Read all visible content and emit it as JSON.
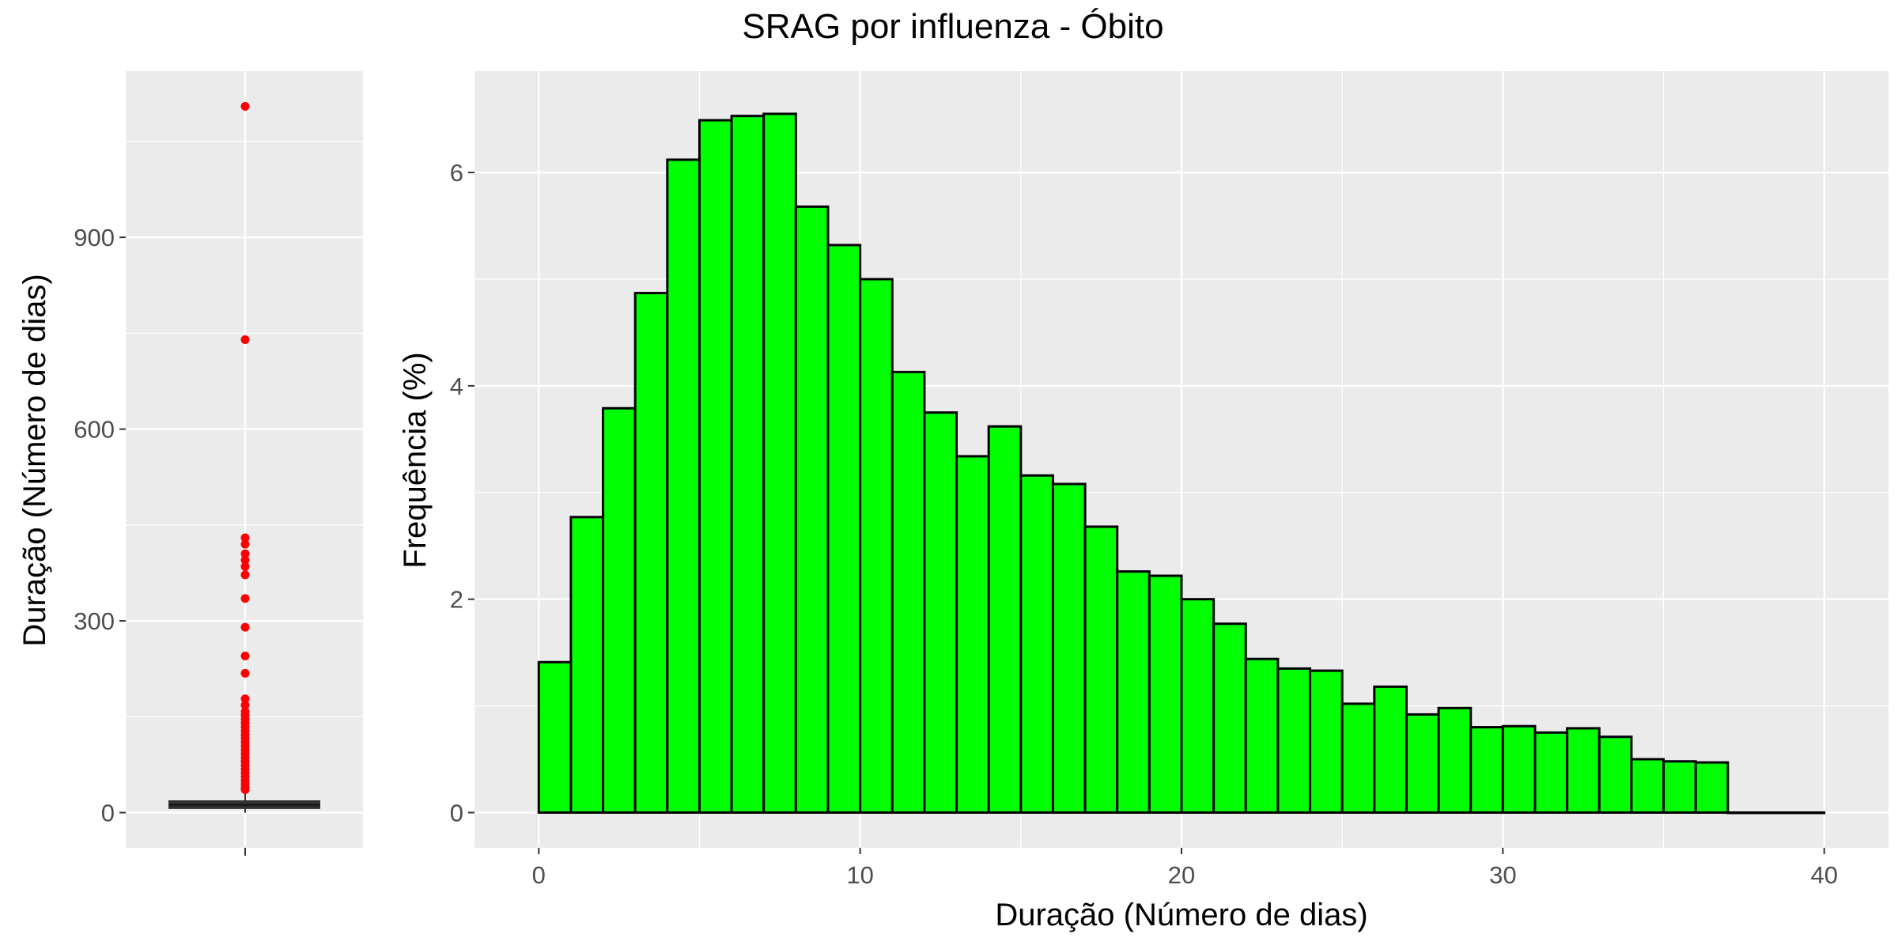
{
  "title": "SRAG por influenza - Óbito",
  "colors": {
    "panel_background": "#ebebeb",
    "grid": "#ffffff",
    "bar_fill": "#00ff00",
    "bar_stroke": "#000000",
    "box_fill": "#333333",
    "outlier": "#ff0000",
    "tick_label": "#4d4d4d"
  },
  "chart_data": [
    {
      "type": "box",
      "ylabel": "Duração (Número de dias)",
      "xlabel": "",
      "ylim": [
        -55,
        1160
      ],
      "yticks": [
        0,
        300,
        600,
        900
      ],
      "box": {
        "q1": 7,
        "median": 12,
        "q3": 18,
        "whisker_low": 0,
        "whisker_high": 34
      },
      "outliers": [
        1105,
        740,
        430,
        420,
        405,
        395,
        385,
        372,
        335,
        290,
        245,
        218,
        178,
        168,
        158,
        152,
        146,
        140,
        134,
        128,
        122,
        116,
        110,
        104,
        98,
        92,
        86,
        80,
        74,
        68,
        62,
        56,
        50,
        45,
        40,
        36
      ],
      "grid": true
    },
    {
      "type": "bar",
      "subtype": "histogram",
      "xlabel": "Duração (Número de dias)",
      "ylabel": "Frequência (%)",
      "xlim": [
        -2,
        42
      ],
      "ylim": [
        -0.33,
        6.95
      ],
      "xticks": [
        0,
        10,
        20,
        30,
        40
      ],
      "yticks": [
        0,
        2,
        4,
        6
      ],
      "bin_width": 1,
      "bin_start": 0,
      "values": [
        1.41,
        2.77,
        3.79,
        4.87,
        6.12,
        6.49,
        6.53,
        6.55,
        5.68,
        5.32,
        5.0,
        4.13,
        3.75,
        3.34,
        3.62,
        3.16,
        3.08,
        2.68,
        2.26,
        2.22,
        2.0,
        1.77,
        1.44,
        1.35,
        1.33,
        1.02,
        1.18,
        0.92,
        0.98,
        0.8,
        0.81,
        0.75,
        0.79,
        0.71,
        0.5,
        0.48,
        0.47,
        0.0,
        0.0,
        0.0
      ],
      "grid": true
    }
  ]
}
